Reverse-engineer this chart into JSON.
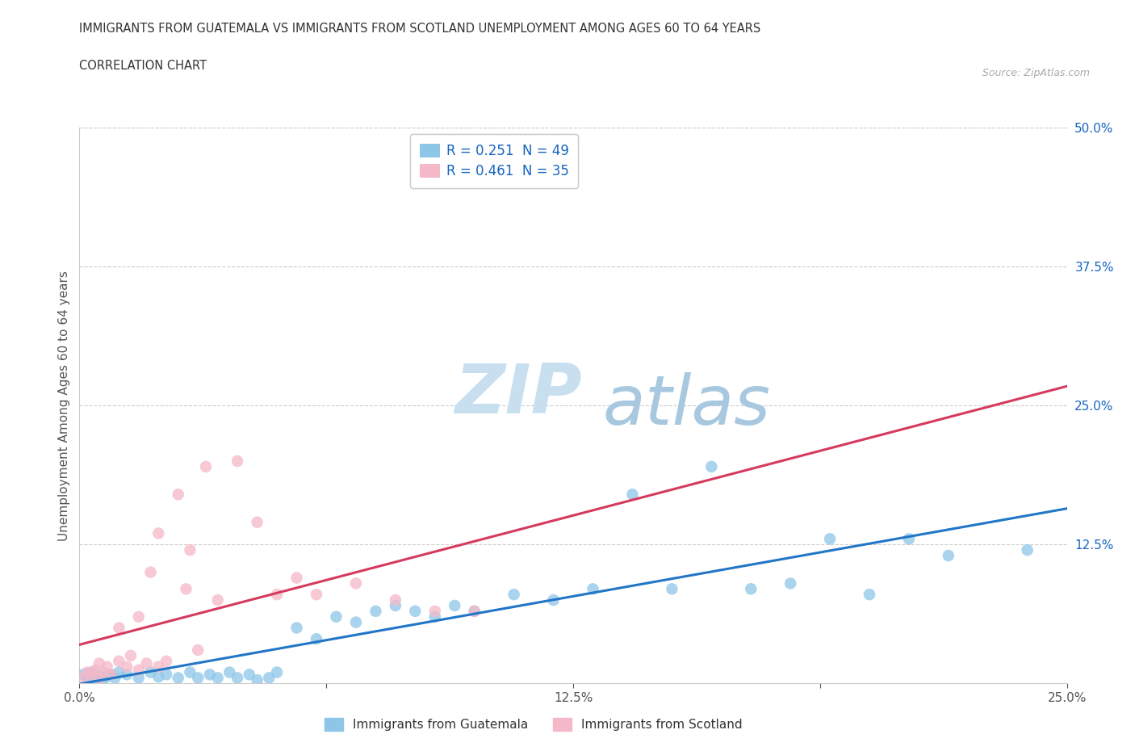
{
  "title_line1": "IMMIGRANTS FROM GUATEMALA VS IMMIGRANTS FROM SCOTLAND UNEMPLOYMENT AMONG AGES 60 TO 64 YEARS",
  "title_line2": "CORRELATION CHART",
  "source": "Source: ZipAtlas.com",
  "ylabel": "Unemployment Among Ages 60 to 64 years",
  "xlim": [
    0.0,
    0.25
  ],
  "ylim": [
    0.0,
    0.5
  ],
  "xticks": [
    0.0,
    0.0625,
    0.125,
    0.1875,
    0.25
  ],
  "xticklabels": [
    "0.0%",
    "",
    "12.5%",
    "",
    "25.0%"
  ],
  "yticks": [
    0.0,
    0.125,
    0.25,
    0.375,
    0.5
  ],
  "yticklabels": [
    "",
    "12.5%",
    "25.0%",
    "37.5%",
    "50.0%"
  ],
  "guatemala_color": "#8ec6e8",
  "scotland_color": "#f5b8c8",
  "trend_guatemala_color": "#2176c7",
  "trend_scotland_color": "#d63a5e",
  "trend_dashed_color": "#e8b4c2",
  "R_guatemala": 0.251,
  "N_guatemala": 49,
  "R_scotland": 0.461,
  "N_scotland": 35,
  "guatemala_x": [
    0.001,
    0.002,
    0.003,
    0.004,
    0.005,
    0.006,
    0.007,
    0.008,
    0.009,
    0.01,
    0.012,
    0.015,
    0.018,
    0.02,
    0.022,
    0.025,
    0.028,
    0.03,
    0.033,
    0.035,
    0.038,
    0.04,
    0.043,
    0.045,
    0.048,
    0.05,
    0.055,
    0.06,
    0.065,
    0.07,
    0.075,
    0.08,
    0.085,
    0.09,
    0.095,
    0.1,
    0.11,
    0.12,
    0.13,
    0.14,
    0.15,
    0.16,
    0.17,
    0.18,
    0.19,
    0.2,
    0.21,
    0.22,
    0.24
  ],
  "guatemala_y": [
    0.008,
    0.005,
    0.01,
    0.003,
    0.007,
    0.004,
    0.006,
    0.008,
    0.005,
    0.01,
    0.008,
    0.005,
    0.01,
    0.006,
    0.008,
    0.005,
    0.01,
    0.005,
    0.008,
    0.005,
    0.01,
    0.005,
    0.008,
    0.003,
    0.005,
    0.01,
    0.05,
    0.04,
    0.06,
    0.055,
    0.065,
    0.07,
    0.065,
    0.06,
    0.07,
    0.065,
    0.08,
    0.075,
    0.085,
    0.17,
    0.085,
    0.195,
    0.085,
    0.09,
    0.13,
    0.08,
    0.13,
    0.115,
    0.12
  ],
  "scotland_x": [
    0.001,
    0.002,
    0.003,
    0.004,
    0.005,
    0.005,
    0.006,
    0.007,
    0.008,
    0.01,
    0.01,
    0.012,
    0.013,
    0.015,
    0.015,
    0.017,
    0.018,
    0.02,
    0.02,
    0.022,
    0.025,
    0.027,
    0.028,
    0.03,
    0.032,
    0.035,
    0.04,
    0.045,
    0.05,
    0.055,
    0.06,
    0.07,
    0.08,
    0.09,
    0.1
  ],
  "scotland_y": [
    0.005,
    0.01,
    0.008,
    0.012,
    0.005,
    0.018,
    0.01,
    0.015,
    0.008,
    0.02,
    0.05,
    0.015,
    0.025,
    0.012,
    0.06,
    0.018,
    0.1,
    0.015,
    0.135,
    0.02,
    0.17,
    0.085,
    0.12,
    0.03,
    0.195,
    0.075,
    0.2,
    0.145,
    0.08,
    0.095,
    0.08,
    0.09,
    0.075,
    0.065,
    0.065
  ],
  "watermark_top": "ZIP",
  "watermark_bottom": "atlas",
  "watermark_color_top": "#c8dff0",
  "watermark_color_bottom": "#b0cfe8",
  "legend_text_color": "#1565c0",
  "background_color": "#ffffff"
}
